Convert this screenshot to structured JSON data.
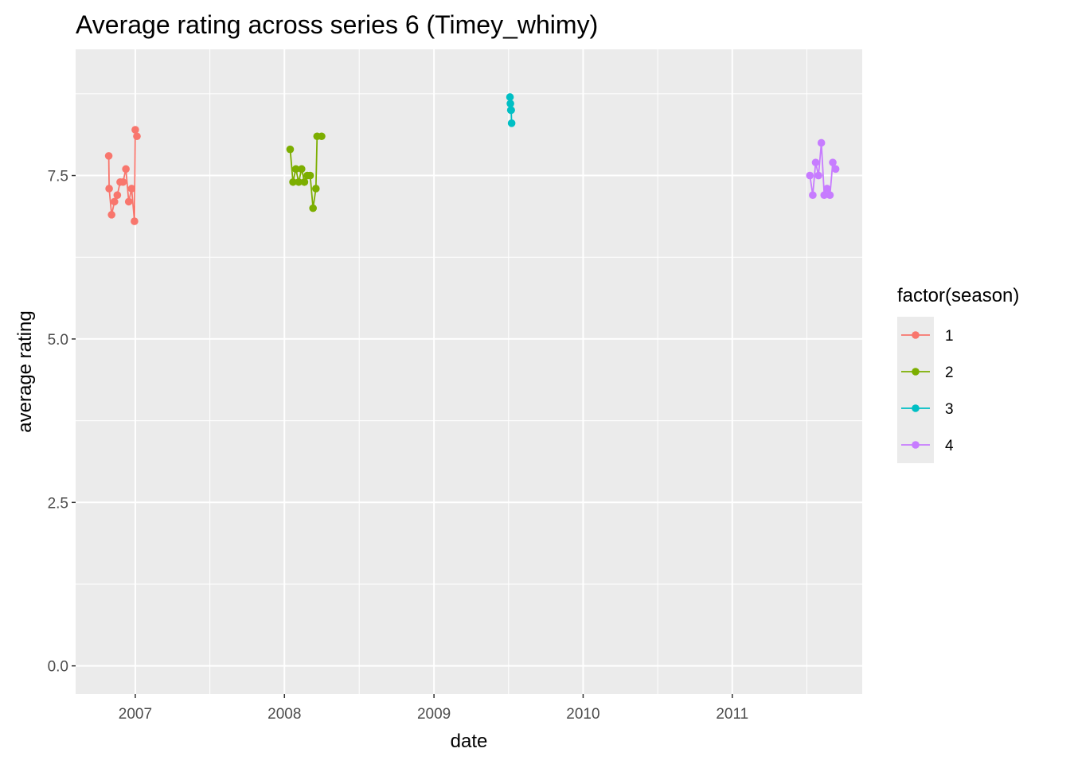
{
  "chart_data": {
    "type": "line",
    "title": "Average rating across series 6 (Timey_whimy)",
    "xlabel": "date",
    "ylabel": "average rating",
    "x_tick_labels": [
      "2007",
      "2008",
      "2009",
      "2010",
      "2011"
    ],
    "x_ticks": [
      "2007-01-01",
      "2008-01-01",
      "2009-01-01",
      "2010-01-01",
      "2011-01-01"
    ],
    "x_range": [
      "2006-08-08",
      "2011-11-15"
    ],
    "y_tick_labels": [
      "0.0",
      "2.5",
      "5.0",
      "7.5"
    ],
    "y_ticks": [
      0,
      2.5,
      5,
      7.5
    ],
    "ylim": [
      -0.43,
      9.43
    ],
    "grid": true,
    "legend": {
      "title": "factor(season)",
      "position": "right"
    },
    "series": [
      {
        "name": "1",
        "color": "#F8766D",
        "points": [
          {
            "x": "2006-10-28",
            "y": 7.8
          },
          {
            "x": "2006-10-29",
            "y": 7.3
          },
          {
            "x": "2006-11-04",
            "y": 6.9
          },
          {
            "x": "2006-11-11",
            "y": 7.1
          },
          {
            "x": "2006-11-18",
            "y": 7.2
          },
          {
            "x": "2006-11-25",
            "y": 7.4
          },
          {
            "x": "2006-12-02",
            "y": 7.4
          },
          {
            "x": "2006-12-09",
            "y": 7.6
          },
          {
            "x": "2006-12-16",
            "y": 7.1
          },
          {
            "x": "2006-12-23",
            "y": 7.3
          },
          {
            "x": "2006-12-30",
            "y": 6.8
          },
          {
            "x": "2007-01-01",
            "y": 8.2
          },
          {
            "x": "2007-01-05",
            "y": 8.1
          }
        ]
      },
      {
        "name": "2",
        "color": "#7CAE00",
        "points": [
          {
            "x": "2008-01-15",
            "y": 7.9
          },
          {
            "x": "2008-01-22",
            "y": 7.4
          },
          {
            "x": "2008-01-29",
            "y": 7.6
          },
          {
            "x": "2008-02-05",
            "y": 7.4
          },
          {
            "x": "2008-02-12",
            "y": 7.6
          },
          {
            "x": "2008-02-19",
            "y": 7.4
          },
          {
            "x": "2008-02-26",
            "y": 7.5
          },
          {
            "x": "2008-03-04",
            "y": 7.5
          },
          {
            "x": "2008-03-11",
            "y": 7.0
          },
          {
            "x": "2008-03-18",
            "y": 7.3
          },
          {
            "x": "2008-03-21",
            "y": 8.1
          },
          {
            "x": "2008-04-01",
            "y": 8.1
          }
        ]
      },
      {
        "name": "3",
        "color": "#00BFC4",
        "points": [
          {
            "x": "2009-07-06",
            "y": 8.7
          },
          {
            "x": "2009-07-07",
            "y": 8.6
          },
          {
            "x": "2009-07-08",
            "y": 8.5
          },
          {
            "x": "2009-07-09",
            "y": 8.5
          },
          {
            "x": "2009-07-10",
            "y": 8.3
          }
        ]
      },
      {
        "name": "4",
        "color": "#C77CFF",
        "points": [
          {
            "x": "2011-07-10",
            "y": 7.5
          },
          {
            "x": "2011-07-17",
            "y": 7.2
          },
          {
            "x": "2011-07-24",
            "y": 7.7
          },
          {
            "x": "2011-07-31",
            "y": 7.5
          },
          {
            "x": "2011-08-07",
            "y": 8.0
          },
          {
            "x": "2011-08-14",
            "y": 7.2
          },
          {
            "x": "2011-08-21",
            "y": 7.3
          },
          {
            "x": "2011-08-28",
            "y": 7.2
          },
          {
            "x": "2011-09-04",
            "y": 7.7
          },
          {
            "x": "2011-09-11",
            "y": 7.6
          }
        ]
      }
    ]
  }
}
